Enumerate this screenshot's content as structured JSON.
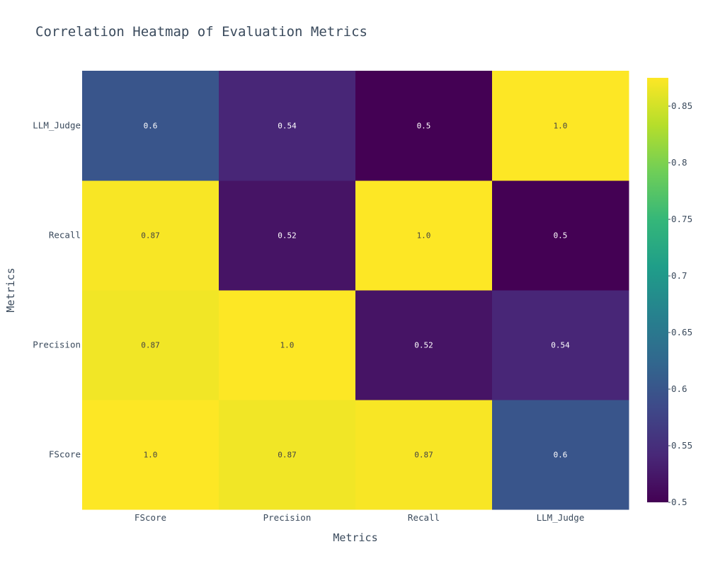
{
  "chart_data": {
    "type": "heatmap",
    "title": "Correlation Heatmap of Evaluation Metrics",
    "xlabel": "Metrics",
    "ylabel": "Metrics",
    "x": [
      "FScore",
      "Precision",
      "Recall",
      "LLM_Judge"
    ],
    "y": [
      "FScore",
      "Precision",
      "Recall",
      "LLM_Judge"
    ],
    "z": [
      [
        1.0,
        0.868,
        0.872,
        0.6
      ],
      [
        0.868,
        1.0,
        0.52,
        0.54
      ],
      [
        0.872,
        0.52,
        1.0,
        0.5
      ],
      [
        0.6,
        0.54,
        0.5,
        1.0
      ]
    ],
    "text": [
      [
        "1.0",
        "0.87",
        "0.87",
        "0.6"
      ],
      [
        "0.87",
        "1.0",
        "0.52",
        "0.54"
      ],
      [
        "0.87",
        "0.52",
        "1.0",
        "0.5"
      ],
      [
        "0.6",
        "0.54",
        "0.5",
        "1.0"
      ]
    ],
    "zmin": 0.5,
    "zmax": 0.875,
    "colorscale": "Viridis",
    "colorbar_ticks": [
      "0.5",
      "0.55",
      "0.6",
      "0.65",
      "0.7",
      "0.75",
      "0.8",
      "0.85"
    ]
  }
}
